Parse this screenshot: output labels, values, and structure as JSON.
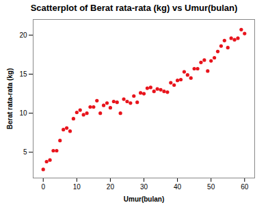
{
  "chart_data": {
    "type": "scatter",
    "title": "Scatterplot of Berat rata-rata (kg) vs Umur(bulan)",
    "x_label": "Umur(bulan)",
    "y_label": "Berat rata-rata (kg)",
    "x": [
      0,
      1,
      2,
      3,
      4,
      5,
      6,
      7,
      8,
      9,
      10,
      11,
      12,
      13,
      14,
      15,
      16,
      17,
      18,
      19,
      20,
      21,
      22,
      23,
      24,
      25,
      26,
      27,
      28,
      29,
      30,
      31,
      32,
      33,
      34,
      35,
      36,
      37,
      38,
      39,
      40,
      41,
      42,
      43,
      44,
      45,
      46,
      47,
      48,
      49,
      50,
      51,
      52,
      53,
      54,
      55,
      56,
      57,
      58,
      59,
      60
    ],
    "values": [
      2.8,
      3.8,
      4.0,
      5.2,
      5.2,
      6.5,
      7.9,
      8.1,
      7.7,
      9.3,
      10.1,
      10.4,
      9.8,
      10.0,
      10.8,
      10.8,
      11.6,
      10.0,
      11.0,
      11.3,
      10.7,
      11.5,
      11.4,
      10.0,
      11.8,
      11.5,
      11.3,
      12.2,
      11.4,
      12.6,
      12.5,
      13.2,
      13.3,
      12.8,
      13.1,
      13.0,
      12.8,
      12.7,
      13.9,
      13.6,
      14.2,
      14.3,
      15.3,
      14.9,
      14.5,
      15.7,
      15.7,
      16.5,
      16.8,
      15.4,
      16.7,
      17.1,
      17.9,
      18.6,
      19.3,
      18.4,
      19.6,
      19.4,
      19.6,
      20.7,
      20.2
    ],
    "color": "#e8141c",
    "marker": "circle",
    "xlim": [
      -3,
      63
    ],
    "xticks": [
      0,
      10,
      20,
      30,
      40,
      50,
      60
    ],
    "ylim": [
      1.7,
      22
    ],
    "yticks": [
      5,
      10,
      15,
      20
    ],
    "grid": false
  }
}
